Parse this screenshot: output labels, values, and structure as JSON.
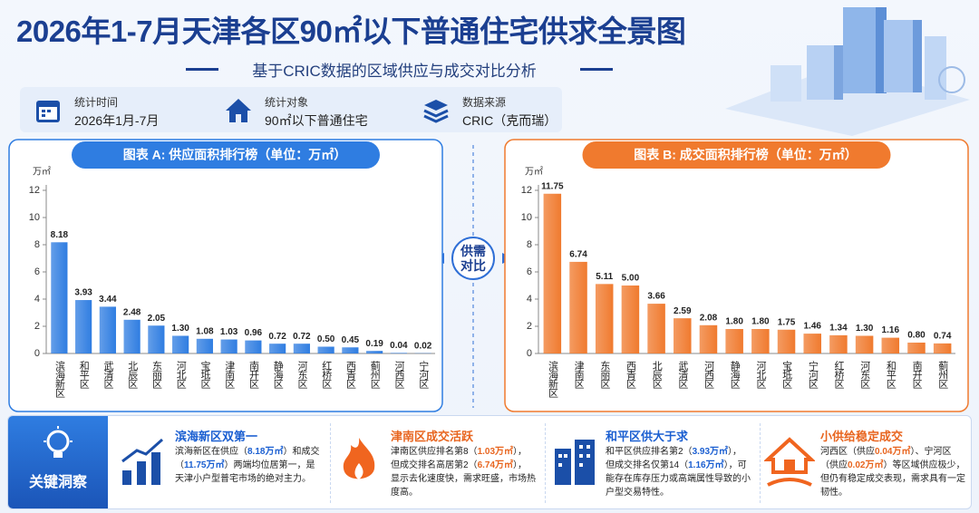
{
  "header": {
    "title": "2026年1-7月天津各区90㎡以下普通住宅供求全景图",
    "subtitle": "基于CRIC数据的区域供应与成交对比分析"
  },
  "info": [
    {
      "label": "统计时间",
      "value": "2026年1月-7月"
    },
    {
      "label": "统计对象",
      "value": "90㎡以下普通住宅"
    },
    {
      "label": "数据来源",
      "value": "CRIC（克而瑞）"
    }
  ],
  "compare_label": "供需对比",
  "chart_data": [
    {
      "type": "bar",
      "title": "图表 A: 供应面积排行榜（单位：万㎡）",
      "y_label": "万㎡",
      "color": "#2f7de1",
      "categories": [
        "滨海新区",
        "和平区",
        "武清区",
        "北辰区",
        "东丽区",
        "河北区",
        "宝坻区",
        "津南区",
        "南开区",
        "静海区",
        "河东区",
        "红桥区",
        "西青区",
        "蓟州区",
        "河西区",
        "宁河区"
      ],
      "values": [
        8.18,
        3.93,
        3.44,
        2.48,
        2.05,
        1.3,
        1.08,
        1.03,
        0.96,
        0.72,
        0.72,
        0.5,
        0.45,
        0.19,
        0.04,
        0.02
      ],
      "value_labels": [
        "8.18",
        "3.93",
        "3.44",
        "2.48",
        "2.05",
        "1.30",
        "1.08",
        "1.03",
        "0.96",
        "0.72",
        "0.72",
        "0.50",
        "0.45",
        "0.19",
        "0.04",
        "0.02"
      ],
      "ylim": [
        0,
        12
      ],
      "yticks": [
        0,
        2,
        4,
        6,
        8,
        10,
        12
      ]
    },
    {
      "type": "bar",
      "title": "图表 B: 成交面积排行榜（单位：万㎡）",
      "y_label": "万㎡",
      "color": "#f07a2e",
      "categories": [
        "滨海新区",
        "津南区",
        "东丽区",
        "西青区",
        "北辰区",
        "武清区",
        "河西区",
        "静海区",
        "河北区",
        "宝坻区",
        "宁河区",
        "红桥区",
        "河东区",
        "和平区",
        "南开区",
        "蓟州区"
      ],
      "values": [
        11.75,
        6.74,
        5.11,
        5.0,
        3.66,
        2.59,
        2.08,
        1.8,
        1.8,
        1.75,
        1.46,
        1.34,
        1.3,
        1.16,
        0.8,
        0.74
      ],
      "value_labels": [
        "11.75",
        "6.74",
        "5.11",
        "5.00",
        "3.66",
        "2.59",
        "2.08",
        "1.80",
        "1.80",
        "1.75",
        "1.46",
        "1.34",
        "1.30",
        "1.16",
        "0.80",
        "0.74"
      ],
      "ylim": [
        0,
        12
      ],
      "yticks": [
        0,
        2,
        4,
        6,
        8,
        10,
        12
      ]
    }
  ],
  "insights": {
    "label": "关键洞察",
    "cards": [
      {
        "title": "滨海新区双第一",
        "text": [
          "滨海新区在供应（",
          "8.18万㎡",
          "）和成交（",
          "11.75万㎡",
          "）两端均位居第一，是天津小户型普宅市场的绝对主力。"
        ]
      },
      {
        "title": "津南区成交活跃",
        "text": [
          "津南区供应排名第8（",
          "1.03万㎡",
          "），但成交排名高居第2（",
          "6.74万㎡",
          "），显示去化速度快，需求旺盛，市场热度高。"
        ]
      },
      {
        "title": "和平区供大于求",
        "text": [
          "和平区供应排名第2（",
          "3.93万㎡",
          "），但成交排名仅第14（",
          "1.16万㎡",
          "），可能存在库存压力或高端属性导致的小户型交易特性。"
        ]
      },
      {
        "title": "小供给稳定成交",
        "text": [
          "河西区（供应",
          "0.04万㎡",
          "）、宁河区（供应",
          "0.02万㎡",
          "）等区域供应极少，但仍有稳定成交表现，需求具有一定韧性。"
        ]
      }
    ]
  }
}
